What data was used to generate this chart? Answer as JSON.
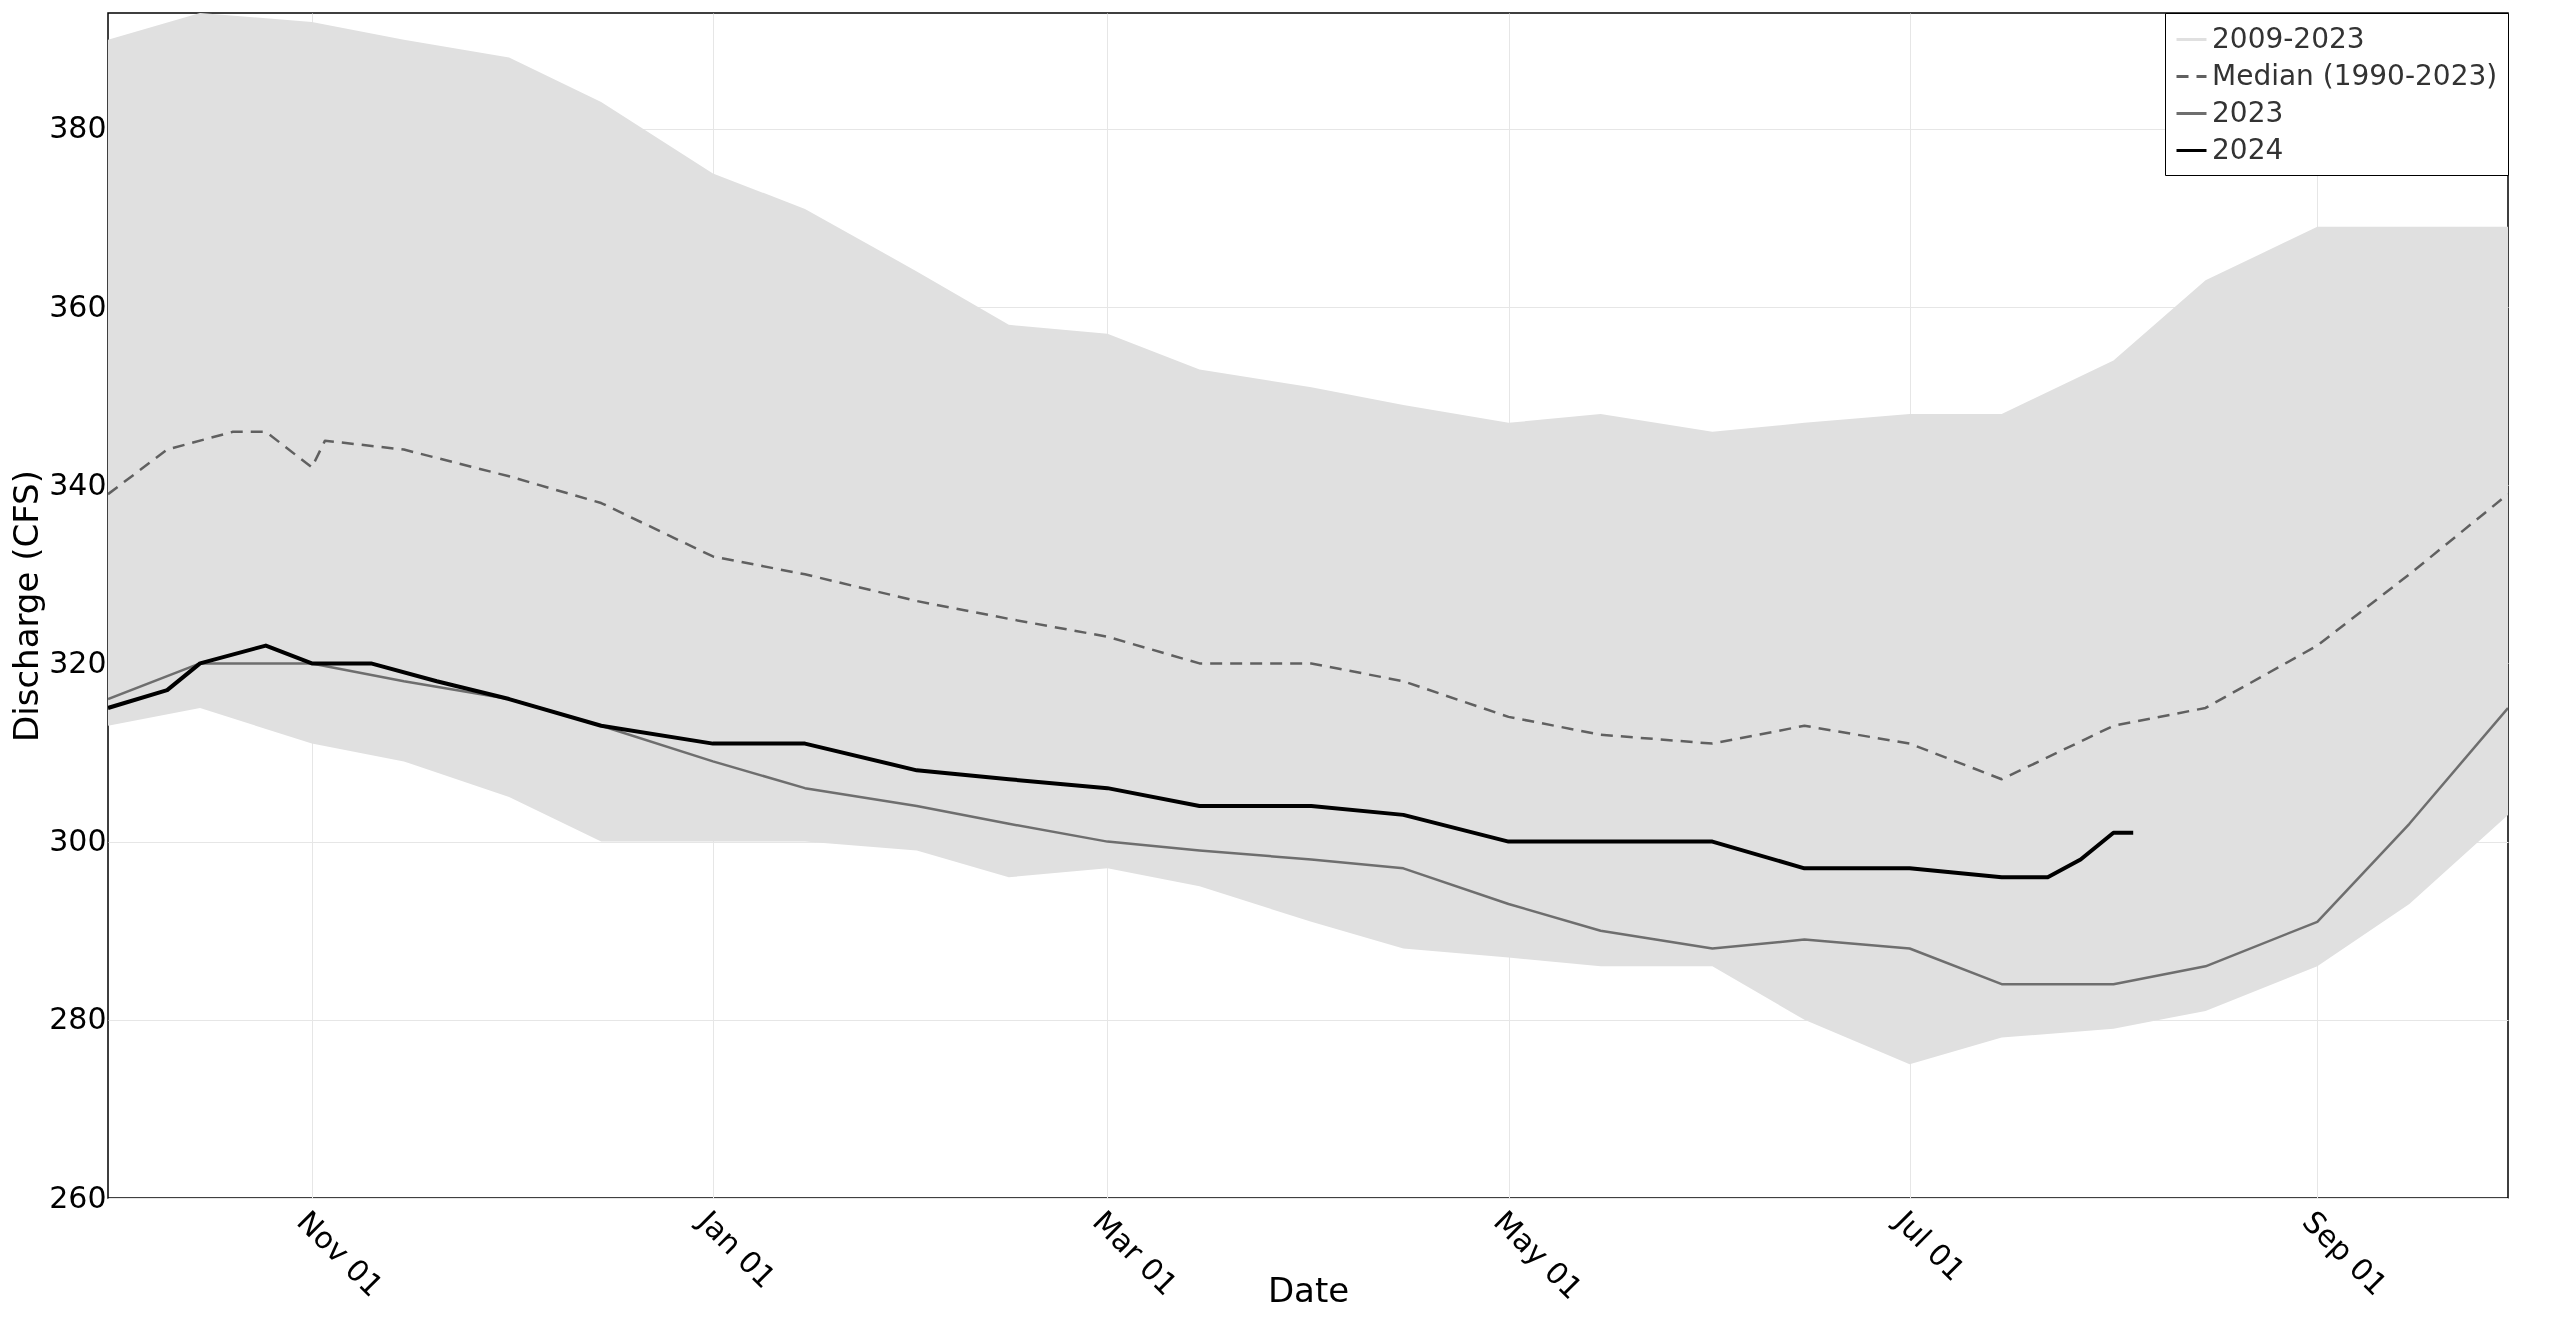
{
  "chart_data": {
    "type": "line",
    "xlabel": "Date",
    "ylabel": "Discharge (CFS)",
    "xlim": [
      "2023-10-01",
      "2024-09-30"
    ],
    "xticks": [
      {
        "value": "2023-11-01",
        "label": "Nov 01"
      },
      {
        "value": "2024-01-01",
        "label": "Jan 01"
      },
      {
        "value": "2024-03-01",
        "label": "Mar 01"
      },
      {
        "value": "2024-05-01",
        "label": "May 01"
      },
      {
        "value": "2024-07-01",
        "label": "Jul 01"
      },
      {
        "value": "2024-09-01",
        "label": "Sep 01"
      }
    ],
    "ylim": [
      260,
      393
    ],
    "yticks": [
      260,
      280,
      300,
      320,
      340,
      360,
      380
    ],
    "grid": true,
    "legend": "top right",
    "series": [
      {
        "name": "2009-2023",
        "type": "area",
        "color": "#e0e0e0",
        "x": [
          "2023-10-01",
          "2023-10-15",
          "2023-11-01",
          "2023-11-15",
          "2023-12-01",
          "2023-12-15",
          "2024-01-01",
          "2024-01-15",
          "2024-02-01",
          "2024-02-15",
          "2024-03-01",
          "2024-03-15",
          "2024-04-01",
          "2024-04-15",
          "2024-05-01",
          "2024-05-15",
          "2024-06-01",
          "2024-06-15",
          "2024-07-01",
          "2024-07-15",
          "2024-08-01",
          "2024-08-15",
          "2024-09-01",
          "2024-09-15",
          "2024-09-30"
        ],
        "values": [
          null,
          null,
          null,
          null,
          null,
          null,
          null,
          null,
          null,
          null,
          null,
          null,
          null,
          null,
          null,
          null,
          null,
          null,
          null,
          null,
          null,
          null,
          null,
          null,
          null
        ],
        "lower": [
          313,
          315,
          311,
          309,
          305,
          300,
          300,
          300,
          299,
          296,
          297,
          295,
          291,
          288,
          287,
          286,
          286,
          280,
          275,
          278,
          279,
          281,
          286,
          293,
          303
        ],
        "upper": [
          390,
          393,
          392,
          390,
          388,
          383,
          375,
          371,
          364,
          358,
          357,
          353,
          351,
          349,
          347,
          348,
          346,
          347,
          348,
          348,
          354,
          363,
          369,
          369,
          369
        ]
      },
      {
        "name": "Median (1990-2023)",
        "line_style": "dashed",
        "color": "#606060",
        "x": [
          "2023-10-01",
          "2023-10-10",
          "2023-10-20",
          "2023-10-25",
          "2023-11-01",
          "2023-11-03",
          "2023-11-15",
          "2023-12-01",
          "2023-12-15",
          "2024-01-01",
          "2024-01-15",
          "2024-02-01",
          "2024-02-15",
          "2024-03-01",
          "2024-03-15",
          "2024-04-01",
          "2024-04-15",
          "2024-05-01",
          "2024-05-15",
          "2024-06-01",
          "2024-06-15",
          "2024-07-01",
          "2024-07-15",
          "2024-08-01",
          "2024-08-15",
          "2024-09-01",
          "2024-09-15",
          "2024-09-30"
        ],
        "values": [
          339,
          344,
          346,
          346,
          342,
          345,
          344,
          341,
          338,
          332,
          330,
          327,
          325,
          323,
          320,
          320,
          318,
          314,
          312,
          311,
          313,
          311,
          307,
          313,
          315,
          322,
          330,
          339
        ]
      },
      {
        "name": "2023",
        "line_style": "solid",
        "color": "#6e6e6e",
        "x": [
          "2023-10-01",
          "2023-10-15",
          "2023-11-01",
          "2023-11-15",
          "2023-12-01",
          "2023-12-15",
          "2024-01-01",
          "2024-01-15",
          "2024-02-01",
          "2024-02-15",
          "2024-03-01",
          "2024-03-15",
          "2024-04-01",
          "2024-04-15",
          "2024-05-01",
          "2024-05-15",
          "2024-06-01",
          "2024-06-15",
          "2024-07-01",
          "2024-07-15",
          "2024-08-01",
          "2024-08-15",
          "2024-09-01",
          "2024-09-15",
          "2024-09-30"
        ],
        "values": [
          316,
          320,
          320,
          318,
          316,
          313,
          309,
          306,
          304,
          302,
          300,
          299,
          298,
          297,
          293,
          290,
          288,
          289,
          288,
          284,
          284,
          286,
          291,
          302,
          315
        ]
      },
      {
        "name": "2024",
        "line_style": "solid",
        "color": "#000000",
        "x": [
          "2023-10-01",
          "2023-10-10",
          "2023-10-15",
          "2023-10-25",
          "2023-11-01",
          "2023-11-10",
          "2023-11-20",
          "2023-12-01",
          "2023-12-15",
          "2024-01-01",
          "2024-01-15",
          "2024-02-01",
          "2024-02-15",
          "2024-03-01",
          "2024-03-15",
          "2024-04-01",
          "2024-04-15",
          "2024-05-01",
          "2024-05-15",
          "2024-06-01",
          "2024-06-15",
          "2024-07-01",
          "2024-07-15",
          "2024-07-22",
          "2024-07-27",
          "2024-08-01",
          "2024-08-04"
        ],
        "values": [
          315,
          317,
          320,
          322,
          320,
          320,
          318,
          316,
          313,
          311,
          311,
          308,
          307,
          306,
          304,
          304,
          303,
          300,
          300,
          300,
          297,
          297,
          296,
          296,
          298,
          301,
          301
        ]
      }
    ]
  }
}
